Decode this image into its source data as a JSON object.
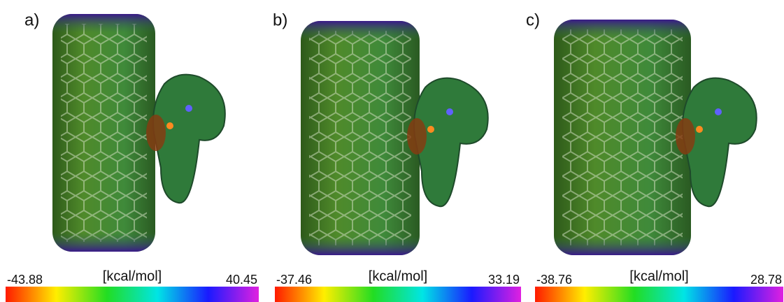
{
  "panels": [
    {
      "label": "a)",
      "colorbar": {
        "unit": "[kcal/mol]",
        "min": -43.88,
        "max": 40.45
      }
    },
    {
      "label": "b)",
      "colorbar": {
        "unit": "[kcal/mol]",
        "min": -37.46,
        "max": 33.19
      }
    },
    {
      "label": "c)",
      "colorbar": {
        "unit": "[kcal/mol]",
        "min": -38.76,
        "max": 28.78
      }
    }
  ]
}
